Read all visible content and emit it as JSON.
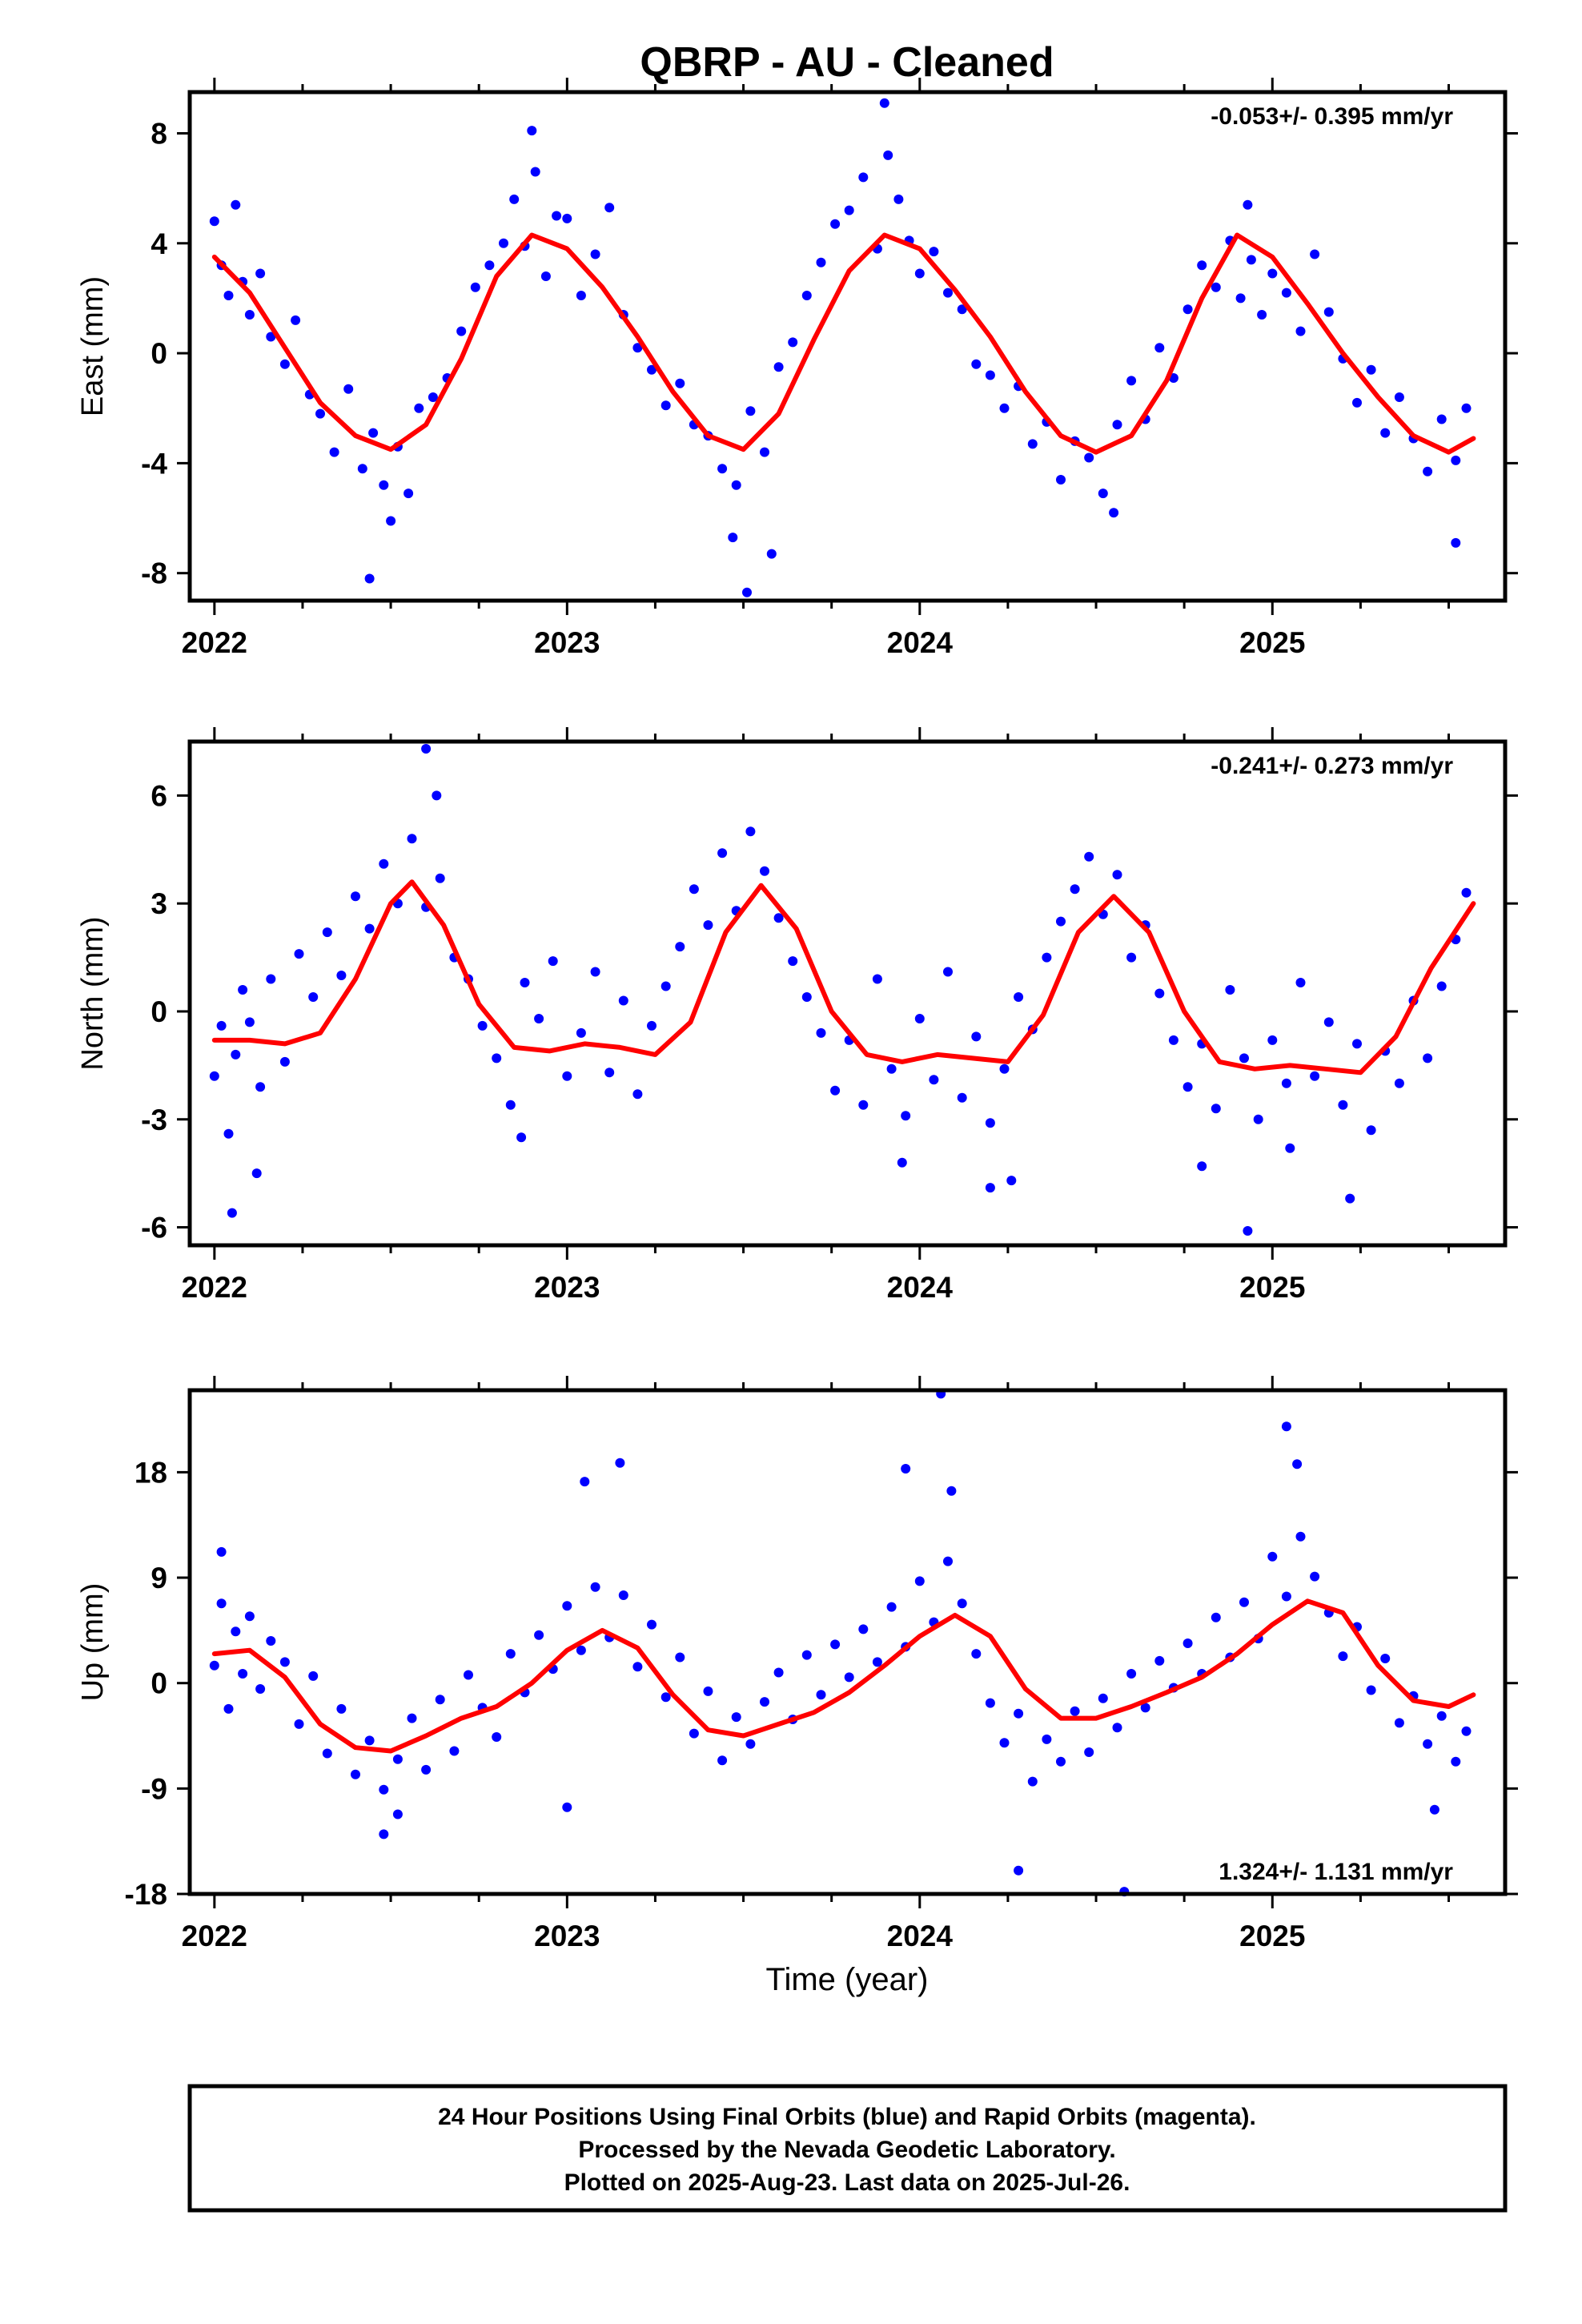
{
  "chart_data": {
    "type": "scatter",
    "title": "QBRP  - AU - Cleaned",
    "xlabel": "Time (year)",
    "caption": [
      "24 Hour Positions Using Final Orbits (blue) and Rapid Orbits (magenta).",
      "Processed by the Nevada Geodetic Laboratory.",
      "Plotted on 2025-Aug-23. Last data on 2025-Jul-26."
    ],
    "colors": {
      "points": "#0000ff",
      "model": "#ff0000",
      "frame": "#000000"
    },
    "x_ticks": [
      2022,
      2023,
      2024,
      2025
    ],
    "xlim": [
      2021.93,
      2025.66
    ],
    "panels": [
      {
        "id": "east",
        "ylabel": "East (mm)",
        "rate": "-0.053+/- 0.395 mm/yr",
        "rate_position": "top-right",
        "ylim": [
          -9.0,
          9.5
        ],
        "yticks": [
          -8,
          -4,
          0,
          4,
          8
        ],
        "model": {
          "x": [
            2022.0,
            2022.1,
            2022.2,
            2022.3,
            2022.4,
            2022.5,
            2022.6,
            2022.7,
            2022.8,
            2022.9,
            2023.0,
            2023.1,
            2023.2,
            2023.3,
            2023.4,
            2023.5,
            2023.6,
            2023.7,
            2023.8,
            2023.9,
            2024.0,
            2024.1,
            2024.2,
            2024.3,
            2024.4,
            2024.5,
            2024.6,
            2024.7,
            2024.8,
            2024.9,
            2025.0,
            2025.1,
            2025.2,
            2025.3,
            2025.4,
            2025.5,
            2025.57
          ],
          "y": [
            3.5,
            2.2,
            0.2,
            -1.8,
            -3.0,
            -3.5,
            -2.6,
            -0.2,
            2.8,
            4.3,
            3.8,
            2.4,
            0.6,
            -1.4,
            -3.0,
            -3.5,
            -2.2,
            0.5,
            3.0,
            4.3,
            3.8,
            2.3,
            0.6,
            -1.4,
            -3.0,
            -3.6,
            -3.0,
            -1.0,
            2.0,
            4.3,
            3.5,
            1.8,
            0.0,
            -1.6,
            -3.0,
            -3.6,
            -3.1
          ]
        },
        "points": {
          "x": [
            2022.0,
            2022.02,
            2022.04,
            2022.06,
            2022.08,
            2022.1,
            2022.13,
            2022.16,
            2022.2,
            2022.23,
            2022.27,
            2022.3,
            2022.34,
            2022.38,
            2022.42,
            2022.45,
            2022.48,
            2022.52,
            2022.55,
            2022.58,
            2022.62,
            2022.66,
            2022.7,
            2022.74,
            2022.78,
            2022.82,
            2022.85,
            2022.88,
            2022.91,
            2022.94,
            2022.97,
            2023.0,
            2023.04,
            2023.08,
            2023.12,
            2023.16,
            2023.2,
            2023.24,
            2023.28,
            2023.32,
            2023.36,
            2023.4,
            2023.44,
            2023.48,
            2023.52,
            2023.56,
            2023.6,
            2023.64,
            2023.68,
            2023.72,
            2023.76,
            2023.8,
            2023.84,
            2023.88,
            2023.91,
            2023.94,
            2023.97,
            2024.0,
            2024.04,
            2024.08,
            2024.12,
            2024.16,
            2024.2,
            2024.24,
            2024.28,
            2024.32,
            2024.36,
            2024.4,
            2024.44,
            2024.48,
            2024.52,
            2024.56,
            2024.6,
            2024.64,
            2024.68,
            2024.72,
            2024.76,
            2024.8,
            2024.84,
            2024.88,
            2024.91,
            2024.94,
            2024.97,
            2025.0,
            2025.04,
            2025.08,
            2025.12,
            2025.16,
            2025.2,
            2025.24,
            2025.28,
            2025.32,
            2025.36,
            2025.4,
            2025.44,
            2025.48,
            2025.52,
            2025.55,
            2022.44,
            2022.5,
            2023.47,
            2023.51,
            2023.58,
            2022.9,
            2023.9,
            2024.93,
            2024.55,
            2025.52
          ],
          "y": [
            4.8,
            3.2,
            2.1,
            5.4,
            2.6,
            1.4,
            2.9,
            0.6,
            -0.4,
            1.2,
            -1.5,
            -2.2,
            -3.6,
            -1.3,
            -4.2,
            -2.9,
            -4.8,
            -3.4,
            -5.1,
            -2.0,
            -1.6,
            -0.9,
            0.8,
            2.4,
            3.2,
            4.0,
            5.6,
            3.9,
            6.6,
            2.8,
            5.0,
            4.9,
            2.1,
            3.6,
            5.3,
            1.4,
            0.2,
            -0.6,
            -1.9,
            -1.1,
            -2.6,
            -3.0,
            -4.2,
            -4.8,
            -2.1,
            -3.6,
            -0.5,
            0.4,
            2.1,
            3.3,
            4.7,
            5.2,
            6.4,
            3.8,
            7.2,
            5.6,
            4.1,
            2.9,
            3.7,
            2.2,
            1.6,
            -0.4,
            -0.8,
            -2.0,
            -1.2,
            -3.3,
            -2.5,
            -4.6,
            -3.2,
            -3.8,
            -5.1,
            -2.6,
            -1.0,
            -2.4,
            0.2,
            -0.9,
            1.6,
            3.2,
            2.4,
            4.1,
            2.0,
            3.4,
            1.4,
            2.9,
            2.2,
            0.8,
            3.6,
            1.5,
            -0.2,
            -1.8,
            -0.6,
            -2.9,
            -1.6,
            -3.1,
            -4.3,
            -2.4,
            -3.9,
            -2.0,
            -8.2,
            -6.1,
            -6.7,
            -8.7,
            -7.3,
            8.1,
            9.1,
            5.4,
            -5.8,
            -6.9
          ]
        }
      },
      {
        "id": "north",
        "ylabel": "North (mm)",
        "rate": "-0.241+/- 0.273 mm/yr",
        "rate_position": "top-right",
        "ylim": [
          -6.5,
          7.5
        ],
        "yticks": [
          -6,
          -3,
          0,
          3,
          6
        ],
        "model": {
          "x": [
            2022.0,
            2022.1,
            2022.2,
            2022.3,
            2022.4,
            2022.5,
            2022.56,
            2022.65,
            2022.75,
            2022.85,
            2022.95,
            2023.05,
            2023.15,
            2023.25,
            2023.35,
            2023.45,
            2023.55,
            2023.65,
            2023.75,
            2023.85,
            2023.95,
            2024.05,
            2024.15,
            2024.25,
            2024.35,
            2024.45,
            2024.55,
            2024.65,
            2024.75,
            2024.85,
            2024.95,
            2025.05,
            2025.15,
            2025.25,
            2025.35,
            2025.45,
            2025.57
          ],
          "y": [
            -0.8,
            -0.8,
            -0.9,
            -0.6,
            0.9,
            3.0,
            3.6,
            2.4,
            0.2,
            -1.0,
            -1.1,
            -0.9,
            -1.0,
            -1.2,
            -0.3,
            2.2,
            3.5,
            2.3,
            0.0,
            -1.2,
            -1.4,
            -1.2,
            -1.3,
            -1.4,
            -0.1,
            2.2,
            3.2,
            2.2,
            0.0,
            -1.4,
            -1.6,
            -1.5,
            -1.6,
            -1.7,
            -0.7,
            1.2,
            3.0
          ]
        },
        "points": {
          "x": [
            2022.0,
            2022.02,
            2022.04,
            2022.06,
            2022.08,
            2022.1,
            2022.13,
            2022.16,
            2022.2,
            2022.24,
            2022.28,
            2022.32,
            2022.36,
            2022.4,
            2022.44,
            2022.48,
            2022.52,
            2022.56,
            2022.6,
            2022.64,
            2022.68,
            2022.72,
            2022.76,
            2022.8,
            2022.84,
            2022.88,
            2022.92,
            2022.96,
            2023.0,
            2023.04,
            2023.08,
            2023.12,
            2023.16,
            2023.2,
            2023.24,
            2023.28,
            2023.32,
            2023.36,
            2023.4,
            2023.44,
            2023.48,
            2023.52,
            2023.56,
            2023.6,
            2023.64,
            2023.68,
            2023.72,
            2023.76,
            2023.8,
            2023.84,
            2023.88,
            2023.92,
            2023.96,
            2024.0,
            2024.04,
            2024.08,
            2024.12,
            2024.16,
            2024.2,
            2024.24,
            2024.28,
            2024.32,
            2024.36,
            2024.4,
            2024.44,
            2024.48,
            2024.52,
            2024.56,
            2024.6,
            2024.64,
            2024.68,
            2024.72,
            2024.76,
            2024.8,
            2024.84,
            2024.88,
            2024.92,
            2024.96,
            2025.0,
            2025.04,
            2025.08,
            2025.12,
            2025.16,
            2025.2,
            2025.24,
            2025.28,
            2025.32,
            2025.36,
            2025.4,
            2025.44,
            2025.48,
            2025.52,
            2025.55,
            2022.05,
            2022.12,
            2022.6,
            2022.63,
            2022.87,
            2023.95,
            2024.2,
            2024.26,
            2024.8,
            2024.93,
            2025.05,
            2025.22
          ],
          "y": [
            -1.8,
            -0.4,
            -3.4,
            -1.2,
            0.6,
            -0.3,
            -2.1,
            0.9,
            -1.4,
            1.6,
            0.4,
            2.2,
            1.0,
            3.2,
            2.3,
            4.1,
            3.0,
            4.8,
            2.9,
            3.7,
            1.5,
            0.9,
            -0.4,
            -1.3,
            -2.6,
            0.8,
            -0.2,
            1.4,
            -1.8,
            -0.6,
            1.1,
            -1.7,
            0.3,
            -2.3,
            -0.4,
            0.7,
            1.8,
            3.4,
            2.4,
            4.4,
            2.8,
            5.0,
            3.9,
            2.6,
            1.4,
            0.4,
            -0.6,
            -2.2,
            -0.8,
            -2.6,
            0.9,
            -1.6,
            -2.9,
            -0.2,
            -1.9,
            1.1,
            -2.4,
            -0.7,
            -3.1,
            -1.6,
            0.4,
            -0.5,
            1.5,
            2.5,
            3.4,
            4.3,
            2.7,
            3.8,
            1.5,
            2.4,
            0.5,
            -0.8,
            -2.1,
            -0.9,
            -2.7,
            0.6,
            -1.3,
            -3.0,
            -0.8,
            -2.0,
            0.8,
            -1.8,
            -0.3,
            -2.6,
            -0.9,
            -3.3,
            -1.1,
            -2.0,
            0.3,
            -1.3,
            0.7,
            2.0,
            3.3,
            -5.6,
            -4.5,
            7.3,
            6.0,
            -3.5,
            -4.2,
            -4.9,
            -4.7,
            -4.3,
            -6.1,
            -3.8,
            -5.2
          ]
        }
      },
      {
        "id": "up",
        "ylabel": "Up (mm)",
        "rate": "1.324+/- 1.131 mm/yr",
        "rate_position": "bottom-right",
        "ylim": [
          -18,
          25
        ],
        "yticks": [
          -18,
          -9,
          0,
          9,
          18
        ],
        "model": {
          "x": [
            2022.0,
            2022.1,
            2022.2,
            2022.3,
            2022.4,
            2022.5,
            2022.6,
            2022.7,
            2022.8,
            2022.9,
            2023.0,
            2023.1,
            2023.2,
            2023.3,
            2023.4,
            2023.5,
            2023.6,
            2023.7,
            2023.8,
            2023.9,
            2024.0,
            2024.1,
            2024.2,
            2024.3,
            2024.4,
            2024.5,
            2024.6,
            2024.7,
            2024.8,
            2024.9,
            2025.0,
            2025.1,
            2025.2,
            2025.3,
            2025.4,
            2025.5,
            2025.57
          ],
          "y": [
            2.5,
            2.8,
            0.5,
            -3.5,
            -5.5,
            -5.8,
            -4.5,
            -3.0,
            -2.0,
            0.0,
            2.8,
            4.5,
            3.0,
            -1.0,
            -4.0,
            -4.5,
            -3.5,
            -2.5,
            -0.8,
            1.5,
            4.0,
            5.8,
            4.0,
            -0.5,
            -3.0,
            -3.0,
            -2.0,
            -0.8,
            0.5,
            2.5,
            5.0,
            7.0,
            6.0,
            1.5,
            -1.5,
            -2.0,
            -1.0
          ]
        },
        "points": {
          "x": [
            2022.0,
            2022.02,
            2022.04,
            2022.06,
            2022.08,
            2022.1,
            2022.13,
            2022.16,
            2022.2,
            2022.24,
            2022.28,
            2022.32,
            2022.36,
            2022.4,
            2022.44,
            2022.48,
            2022.52,
            2022.56,
            2022.6,
            2022.64,
            2022.68,
            2022.72,
            2022.76,
            2022.8,
            2022.84,
            2022.88,
            2022.92,
            2022.96,
            2023.0,
            2023.04,
            2023.08,
            2023.12,
            2023.16,
            2023.2,
            2023.24,
            2023.28,
            2023.32,
            2023.36,
            2023.4,
            2023.44,
            2023.48,
            2023.52,
            2023.56,
            2023.6,
            2023.64,
            2023.68,
            2023.72,
            2023.76,
            2023.8,
            2023.84,
            2023.88,
            2023.92,
            2023.96,
            2024.0,
            2024.04,
            2024.08,
            2024.12,
            2024.16,
            2024.2,
            2024.24,
            2024.28,
            2024.32,
            2024.36,
            2024.4,
            2024.44,
            2024.48,
            2024.52,
            2024.56,
            2024.6,
            2024.64,
            2024.68,
            2024.72,
            2024.76,
            2024.8,
            2024.84,
            2024.88,
            2024.92,
            2024.96,
            2025.0,
            2025.04,
            2025.08,
            2025.12,
            2025.16,
            2025.2,
            2025.24,
            2025.28,
            2025.32,
            2025.36,
            2025.4,
            2025.44,
            2025.48,
            2025.52,
            2025.55,
            2022.02,
            2022.48,
            2022.52,
            2023.0,
            2023.15,
            2023.05,
            2023.96,
            2024.06,
            2024.09,
            2024.28,
            2024.58,
            2025.04,
            2025.07,
            2025.46
          ],
          "y": [
            1.5,
            6.8,
            -2.2,
            4.4,
            0.8,
            5.7,
            -0.5,
            3.6,
            1.8,
            -3.5,
            0.6,
            -6.0,
            -2.2,
            -7.8,
            -4.9,
            -9.1,
            -6.5,
            -3.0,
            -7.4,
            -1.4,
            -5.8,
            0.7,
            -2.1,
            -4.6,
            2.5,
            -0.8,
            4.1,
            1.2,
            6.6,
            2.8,
            8.2,
            3.9,
            7.5,
            1.4,
            5.0,
            -1.2,
            2.2,
            -4.3,
            -0.7,
            -6.6,
            -2.9,
            -5.2,
            -1.6,
            0.9,
            -3.1,
            2.4,
            -1.0,
            3.3,
            0.5,
            4.6,
            1.8,
            6.5,
            3.1,
            8.7,
            5.2,
            10.4,
            6.8,
            2.5,
            -1.7,
            -5.1,
            -2.6,
            -8.4,
            -4.8,
            -6.7,
            -2.4,
            -5.9,
            -1.3,
            -3.8,
            0.8,
            -2.1,
            1.9,
            -0.4,
            3.4,
            0.8,
            5.6,
            2.2,
            6.9,
            3.8,
            10.8,
            7.4,
            12.5,
            9.1,
            6.0,
            2.3,
            4.8,
            -0.6,
            2.1,
            -3.4,
            -1.1,
            -5.2,
            -2.8,
            -6.7,
            -4.1,
            11.2,
            -12.9,
            -11.2,
            -10.6,
            18.8,
            17.2,
            18.3,
            24.7,
            16.4,
            -16.0,
            -17.8,
            21.9,
            18.7,
            -10.8
          ]
        }
      }
    ]
  }
}
